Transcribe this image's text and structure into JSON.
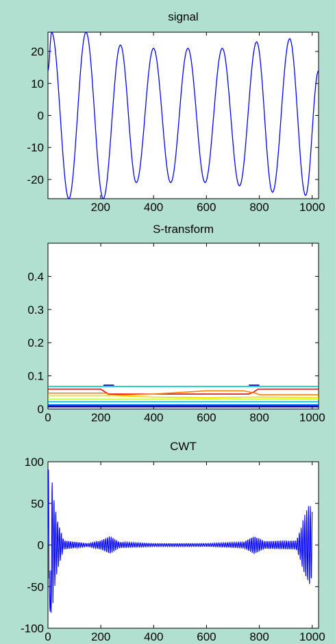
{
  "colors": {
    "background": "#b2e0d0",
    "axes_bg": "#ffffff",
    "line": "#0000ff"
  },
  "chart_data": [
    {
      "type": "line",
      "title": "signal",
      "xlabel": "",
      "ylabel": "",
      "xlim": [
        1,
        1024
      ],
      "ylim": [
        -26,
        26
      ],
      "xticks": [
        "200",
        "400",
        "600",
        "800",
        "1000"
      ],
      "yticks": [
        "20",
        "10",
        "0",
        "-10",
        "-20"
      ],
      "grid": false,
      "peaks": [
        {
          "x": 15,
          "y": 26
        },
        {
          "x": 80,
          "y": -26
        },
        {
          "x": 145,
          "y": 26
        },
        {
          "x": 210,
          "y": -26
        },
        {
          "x": 275,
          "y": 22
        },
        {
          "x": 335,
          "y": -21
        },
        {
          "x": 400,
          "y": 21
        },
        {
          "x": 465,
          "y": -21
        },
        {
          "x": 530,
          "y": 21
        },
        {
          "x": 595,
          "y": -21
        },
        {
          "x": 660,
          "y": 21
        },
        {
          "x": 725,
          "y": -22
        },
        {
          "x": 790,
          "y": 23
        },
        {
          "x": 850,
          "y": -24
        },
        {
          "x": 915,
          "y": 24
        },
        {
          "x": 975,
          "y": -25
        },
        {
          "x": 1024,
          "y": 14
        }
      ]
    },
    {
      "type": "line",
      "title": "S-transform",
      "xlabel": "",
      "ylabel": "",
      "xlim": [
        0,
        1024
      ],
      "ylim": [
        0,
        0.5
      ],
      "xticks": [
        "0",
        "200",
        "400",
        "600",
        "800",
        "1000"
      ],
      "yticks": [
        "0.4",
        "0.3",
        "0.2",
        "0.1",
        "0"
      ],
      "grid": false,
      "contours": [
        {
          "color": "#00c0c0",
          "points": [
            [
              0,
              0.068
            ],
            [
              1024,
              0.068
            ]
          ]
        },
        {
          "color": "#ff0000",
          "points": [
            [
              0,
              0.06
            ],
            [
              200,
              0.06
            ],
            [
              215,
              0.052
            ],
            [
              230,
              0.045
            ],
            [
              760,
              0.045
            ],
            [
              780,
              0.052
            ],
            [
              795,
              0.06
            ],
            [
              1024,
              0.06
            ]
          ]
        },
        {
          "color": "#ff7f00",
          "points": [
            [
              0,
              0.048
            ],
            [
              220,
              0.048
            ],
            [
              235,
              0.041
            ],
            [
              400,
              0.045
            ],
            [
              600,
              0.055
            ],
            [
              740,
              0.055
            ],
            [
              790,
              0.047
            ],
            [
              800,
              0.043
            ],
            [
              1024,
              0.043
            ]
          ]
        },
        {
          "color": "#ffd700",
          "points": [
            [
              0,
              0.04
            ],
            [
              250,
              0.04
            ],
            [
              400,
              0.036
            ],
            [
              600,
              0.034
            ],
            [
              780,
              0.036
            ],
            [
              1024,
              0.034
            ]
          ]
        },
        {
          "color": "#c0ff40",
          "points": [
            [
              0,
              0.03
            ],
            [
              1024,
              0.03
            ]
          ]
        },
        {
          "color": "#00c0c0",
          "points": [
            [
              0,
              0.022
            ],
            [
              1024,
              0.022
            ]
          ]
        },
        {
          "color": "#0080ff",
          "points": [
            [
              0,
              0.013
            ],
            [
              1024,
              0.013
            ]
          ]
        },
        {
          "color": "#0000a0",
          "points": [
            [
              0,
              0.008
            ],
            [
              1024,
              0.008
            ]
          ]
        }
      ],
      "dark_segments": [
        {
          "color": "#0000a0",
          "points": [
            [
              210,
              0.072
            ],
            [
              250,
              0.072
            ]
          ]
        },
        {
          "color": "#0000a0",
          "points": [
            [
              760,
              0.072
            ],
            [
              800,
              0.072
            ]
          ]
        }
      ]
    },
    {
      "type": "line",
      "title": "CWT",
      "xlabel": "",
      "ylabel": "",
      "xlim": [
        0,
        1024
      ],
      "ylim": [
        -100,
        100
      ],
      "xticks": [
        "0",
        "200",
        "400",
        "600",
        "800",
        "1000"
      ],
      "yticks": [
        "100",
        "50",
        "0",
        "-50",
        "-100"
      ],
      "grid": false,
      "envelope": [
        {
          "x": 0,
          "amp": 95
        },
        {
          "x": 15,
          "amp": 80
        },
        {
          "x": 35,
          "amp": 35
        },
        {
          "x": 60,
          "amp": 6
        },
        {
          "x": 150,
          "amp": 2
        },
        {
          "x": 200,
          "amp": 6
        },
        {
          "x": 235,
          "amp": 12
        },
        {
          "x": 270,
          "amp": 4
        },
        {
          "x": 400,
          "amp": 2
        },
        {
          "x": 600,
          "amp": 2
        },
        {
          "x": 740,
          "amp": 4
        },
        {
          "x": 780,
          "amp": 12
        },
        {
          "x": 820,
          "amp": 5
        },
        {
          "x": 940,
          "amp": 6
        },
        {
          "x": 970,
          "amp": 35
        },
        {
          "x": 990,
          "amp": 50
        },
        {
          "x": 1000,
          "amp": 40
        }
      ]
    }
  ]
}
